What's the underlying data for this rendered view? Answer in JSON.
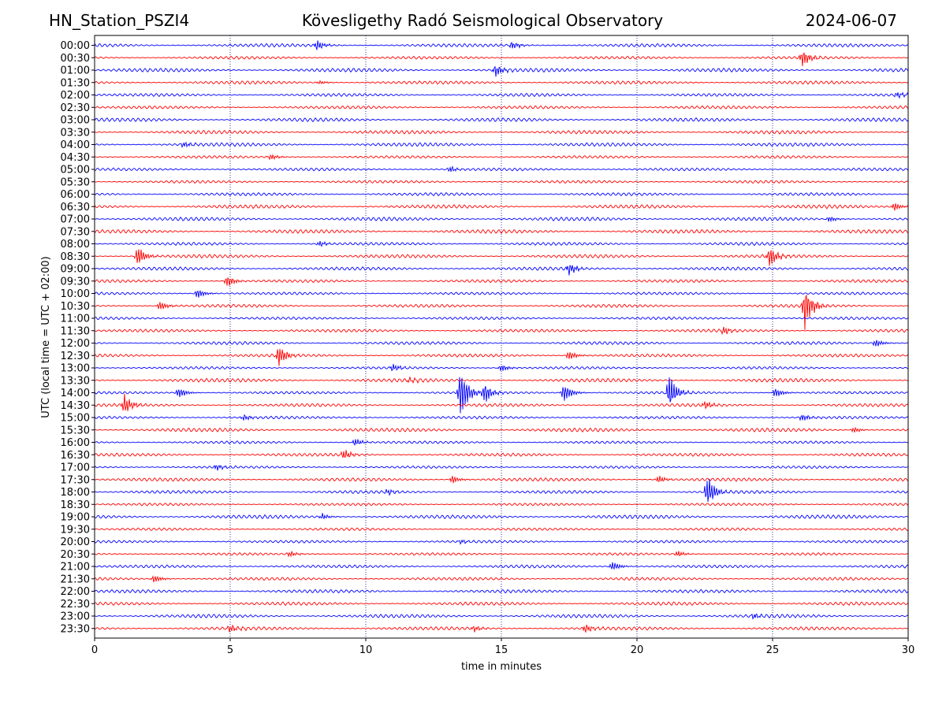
{
  "header": {
    "station": "HN_Station_PSZI4",
    "observatory": "Kövesligethy Radó Seismological Observatory",
    "date": "2024-06-07"
  },
  "chart_data": {
    "type": "line",
    "title": "Kövesligethy Radó Seismological Observatory",
    "xlabel": "time in minutes",
    "ylabel": "UTC (local time = UTC + 02:00)",
    "xlim": [
      0,
      30
    ],
    "xticks": [
      0,
      5,
      10,
      15,
      20,
      25,
      30
    ],
    "grid": "vertical dotted at 5-minute intervals",
    "colors": {
      "even_trace": "#0000ff",
      "odd_trace": "#ff0000",
      "grid": "#000080",
      "axis": "#000000"
    },
    "series": [
      {
        "name": "00:00",
        "color": "#0000ff",
        "events": [
          {
            "t": 8.2,
            "amp": 0.5
          },
          {
            "t": 15.4,
            "amp": 0.4
          }
        ]
      },
      {
        "name": "00:30",
        "color": "#ff0000",
        "events": [
          {
            "t": 26.1,
            "amp": 0.9
          }
        ]
      },
      {
        "name": "01:00",
        "color": "#0000ff",
        "events": [
          {
            "t": 14.8,
            "amp": 0.6
          }
        ]
      },
      {
        "name": "01:30",
        "color": "#ff0000",
        "events": [
          {
            "t": 8.3,
            "amp": 0.2
          }
        ]
      },
      {
        "name": "02:00",
        "color": "#0000ff",
        "events": [
          {
            "t": 29.6,
            "amp": 0.3
          }
        ]
      },
      {
        "name": "02:30",
        "color": "#ff0000",
        "events": []
      },
      {
        "name": "03:00",
        "color": "#0000ff",
        "events": []
      },
      {
        "name": "03:30",
        "color": "#ff0000",
        "events": []
      },
      {
        "name": "04:00",
        "color": "#0000ff",
        "events": [
          {
            "t": 3.3,
            "amp": 0.3
          }
        ]
      },
      {
        "name": "04:30",
        "color": "#ff0000",
        "events": [
          {
            "t": 6.5,
            "amp": 0.3
          }
        ]
      },
      {
        "name": "05:00",
        "color": "#0000ff",
        "events": [
          {
            "t": 13.1,
            "amp": 0.3
          }
        ]
      },
      {
        "name": "05:30",
        "color": "#ff0000",
        "events": []
      },
      {
        "name": "06:00",
        "color": "#0000ff",
        "events": []
      },
      {
        "name": "06:30",
        "color": "#ff0000",
        "events": [
          {
            "t": 29.5,
            "amp": 0.4
          }
        ]
      },
      {
        "name": "07:00",
        "color": "#0000ff",
        "events": [
          {
            "t": 27.1,
            "amp": 0.3
          }
        ]
      },
      {
        "name": "07:30",
        "color": "#ff0000",
        "events": []
      },
      {
        "name": "08:00",
        "color": "#0000ff",
        "events": [
          {
            "t": 8.3,
            "amp": 0.3
          }
        ]
      },
      {
        "name": "08:30",
        "color": "#ff0000",
        "events": [
          {
            "t": 1.6,
            "amp": 1.0
          },
          {
            "t": 24.9,
            "amp": 1.0
          }
        ]
      },
      {
        "name": "09:00",
        "color": "#0000ff",
        "events": [
          {
            "t": 17.5,
            "amp": 0.6
          }
        ]
      },
      {
        "name": "09:30",
        "color": "#ff0000",
        "events": [
          {
            "t": 4.9,
            "amp": 0.6
          }
        ]
      },
      {
        "name": "10:00",
        "color": "#0000ff",
        "events": [
          {
            "t": 3.8,
            "amp": 0.5
          }
        ]
      },
      {
        "name": "10:30",
        "color": "#ff0000",
        "events": [
          {
            "t": 2.4,
            "amp": 0.5
          },
          {
            "t": 26.2,
            "amp": 2.2
          }
        ]
      },
      {
        "name": "11:00",
        "color": "#0000ff",
        "events": []
      },
      {
        "name": "11:30",
        "color": "#ff0000",
        "events": [
          {
            "t": 23.2,
            "amp": 0.4
          }
        ]
      },
      {
        "name": "12:00",
        "color": "#0000ff",
        "events": [
          {
            "t": 28.8,
            "amp": 0.4
          }
        ]
      },
      {
        "name": "12:30",
        "color": "#ff0000",
        "events": [
          {
            "t": 6.8,
            "amp": 1.0
          },
          {
            "t": 17.5,
            "amp": 0.5
          }
        ]
      },
      {
        "name": "13:00",
        "color": "#0000ff",
        "events": [
          {
            "t": 11.0,
            "amp": 0.4
          },
          {
            "t": 15.0,
            "amp": 0.4
          }
        ]
      },
      {
        "name": "13:30",
        "color": "#ff0000",
        "events": [
          {
            "t": 11.6,
            "amp": 0.3
          }
        ]
      },
      {
        "name": "14:00",
        "color": "#0000ff",
        "events": [
          {
            "t": 3.1,
            "amp": 0.6
          },
          {
            "t": 13.5,
            "amp": 2.5
          },
          {
            "t": 14.4,
            "amp": 1.0
          },
          {
            "t": 17.3,
            "amp": 1.0
          },
          {
            "t": 21.2,
            "amp": 1.8
          },
          {
            "t": 25.1,
            "amp": 0.5
          }
        ]
      },
      {
        "name": "14:30",
        "color": "#ff0000",
        "events": [
          {
            "t": 1.1,
            "amp": 1.0
          },
          {
            "t": 22.5,
            "amp": 0.4
          }
        ]
      },
      {
        "name": "15:00",
        "color": "#0000ff",
        "events": [
          {
            "t": 5.5,
            "amp": 0.3
          },
          {
            "t": 26.1,
            "amp": 0.4
          }
        ]
      },
      {
        "name": "15:30",
        "color": "#ff0000",
        "events": [
          {
            "t": 28.0,
            "amp": 0.3
          }
        ]
      },
      {
        "name": "16:00",
        "color": "#0000ff",
        "events": [
          {
            "t": 9.6,
            "amp": 0.4
          }
        ]
      },
      {
        "name": "16:30",
        "color": "#ff0000",
        "events": [
          {
            "t": 9.2,
            "amp": 0.5
          }
        ]
      },
      {
        "name": "17:00",
        "color": "#0000ff",
        "events": [
          {
            "t": 4.5,
            "amp": 0.3
          }
        ]
      },
      {
        "name": "17:30",
        "color": "#ff0000",
        "events": [
          {
            "t": 13.2,
            "amp": 0.4
          },
          {
            "t": 20.8,
            "amp": 0.4
          }
        ]
      },
      {
        "name": "18:00",
        "color": "#0000ff",
        "events": [
          {
            "t": 10.8,
            "amp": 0.3
          },
          {
            "t": 22.6,
            "amp": 1.6
          }
        ]
      },
      {
        "name": "18:30",
        "color": "#ff0000",
        "events": []
      },
      {
        "name": "19:00",
        "color": "#0000ff",
        "events": [
          {
            "t": 8.4,
            "amp": 0.3
          }
        ]
      },
      {
        "name": "19:30",
        "color": "#ff0000",
        "events": []
      },
      {
        "name": "20:00",
        "color": "#0000ff",
        "events": [
          {
            "t": 13.5,
            "amp": 0.2
          }
        ]
      },
      {
        "name": "20:30",
        "color": "#ff0000",
        "events": [
          {
            "t": 7.2,
            "amp": 0.3
          },
          {
            "t": 21.5,
            "amp": 0.3
          }
        ]
      },
      {
        "name": "21:00",
        "color": "#0000ff",
        "events": [
          {
            "t": 19.1,
            "amp": 0.5
          }
        ]
      },
      {
        "name": "21:30",
        "color": "#ff0000",
        "events": [
          {
            "t": 2.2,
            "amp": 0.4
          }
        ]
      },
      {
        "name": "22:00",
        "color": "#0000ff",
        "events": []
      },
      {
        "name": "22:30",
        "color": "#ff0000",
        "events": []
      },
      {
        "name": "23:00",
        "color": "#0000ff",
        "events": [
          {
            "t": 24.3,
            "amp": 0.3
          }
        ]
      },
      {
        "name": "23:30",
        "color": "#ff0000",
        "events": [
          {
            "t": 5.0,
            "amp": 0.4
          },
          {
            "t": 14.0,
            "amp": 0.3
          },
          {
            "t": 18.1,
            "amp": 0.4
          }
        ]
      }
    ]
  }
}
